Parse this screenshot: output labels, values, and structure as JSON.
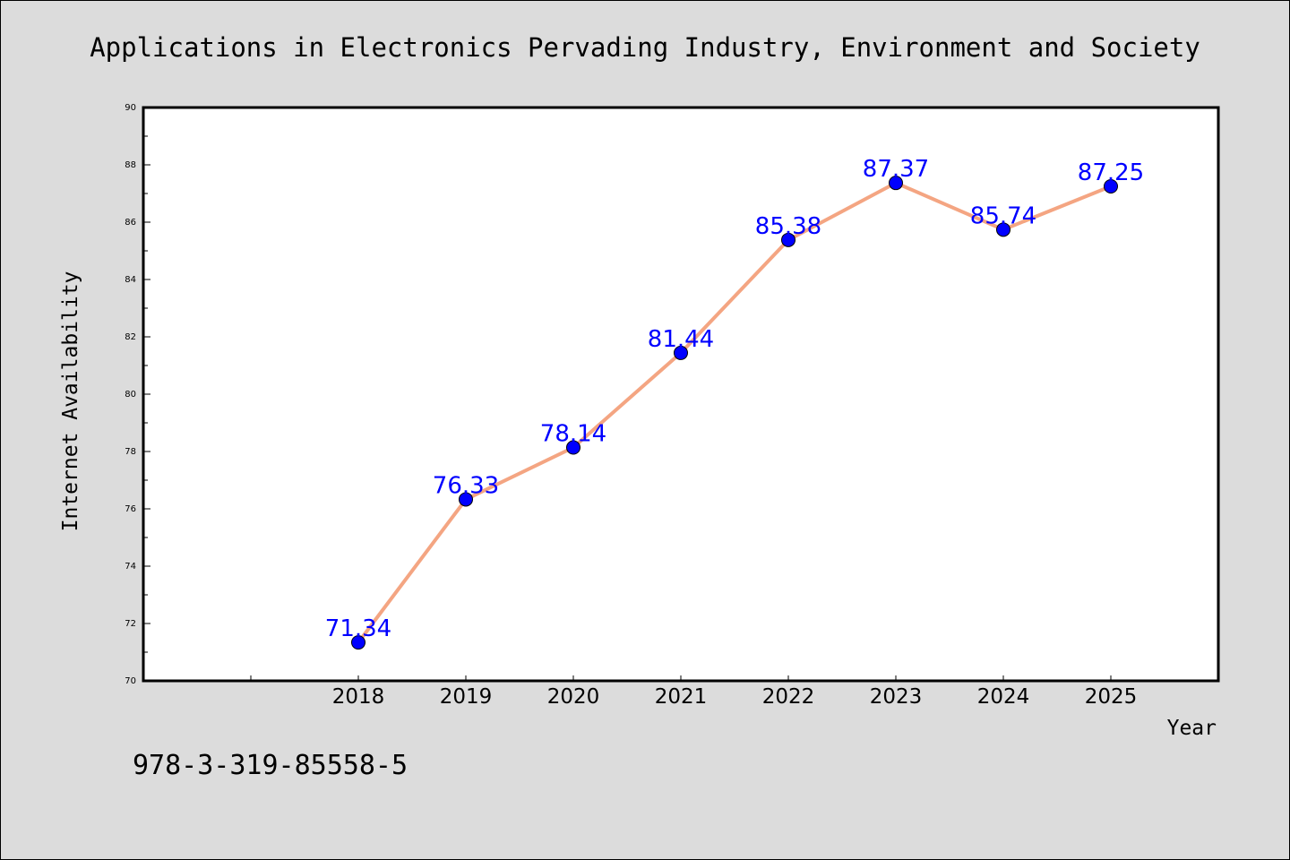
{
  "chart_data": {
    "type": "line",
    "title": "Applications in Electronics Pervading Industry, Environment and Society",
    "xlabel": "Year",
    "ylabel": "Internet Availability",
    "x": [
      "2018",
      "2019",
      "2020",
      "2021",
      "2022",
      "2023",
      "2024",
      "2025"
    ],
    "series": [
      {
        "values": [
          71.34,
          76.33,
          78.14,
          81.44,
          85.38,
          87.37,
          85.74,
          87.25
        ],
        "labels": [
          "71.34",
          "76.33",
          "78.14",
          "81.44",
          "85.38",
          "87.37",
          "85.74",
          "87.25"
        ]
      }
    ],
    "ylim": [
      70,
      90
    ],
    "yticks": [
      "70",
      "72",
      "74",
      "76",
      "78",
      "80",
      "82",
      "84",
      "86",
      "88",
      "90"
    ],
    "grid": false,
    "legend": "none",
    "annotation": "978-3-319-85558-5",
    "colors": {
      "background": "#dcdcdc",
      "plot_background": "#ffffff",
      "line": "#f4a582",
      "marker": "#0000ff",
      "data_label": "#0000ff"
    }
  }
}
